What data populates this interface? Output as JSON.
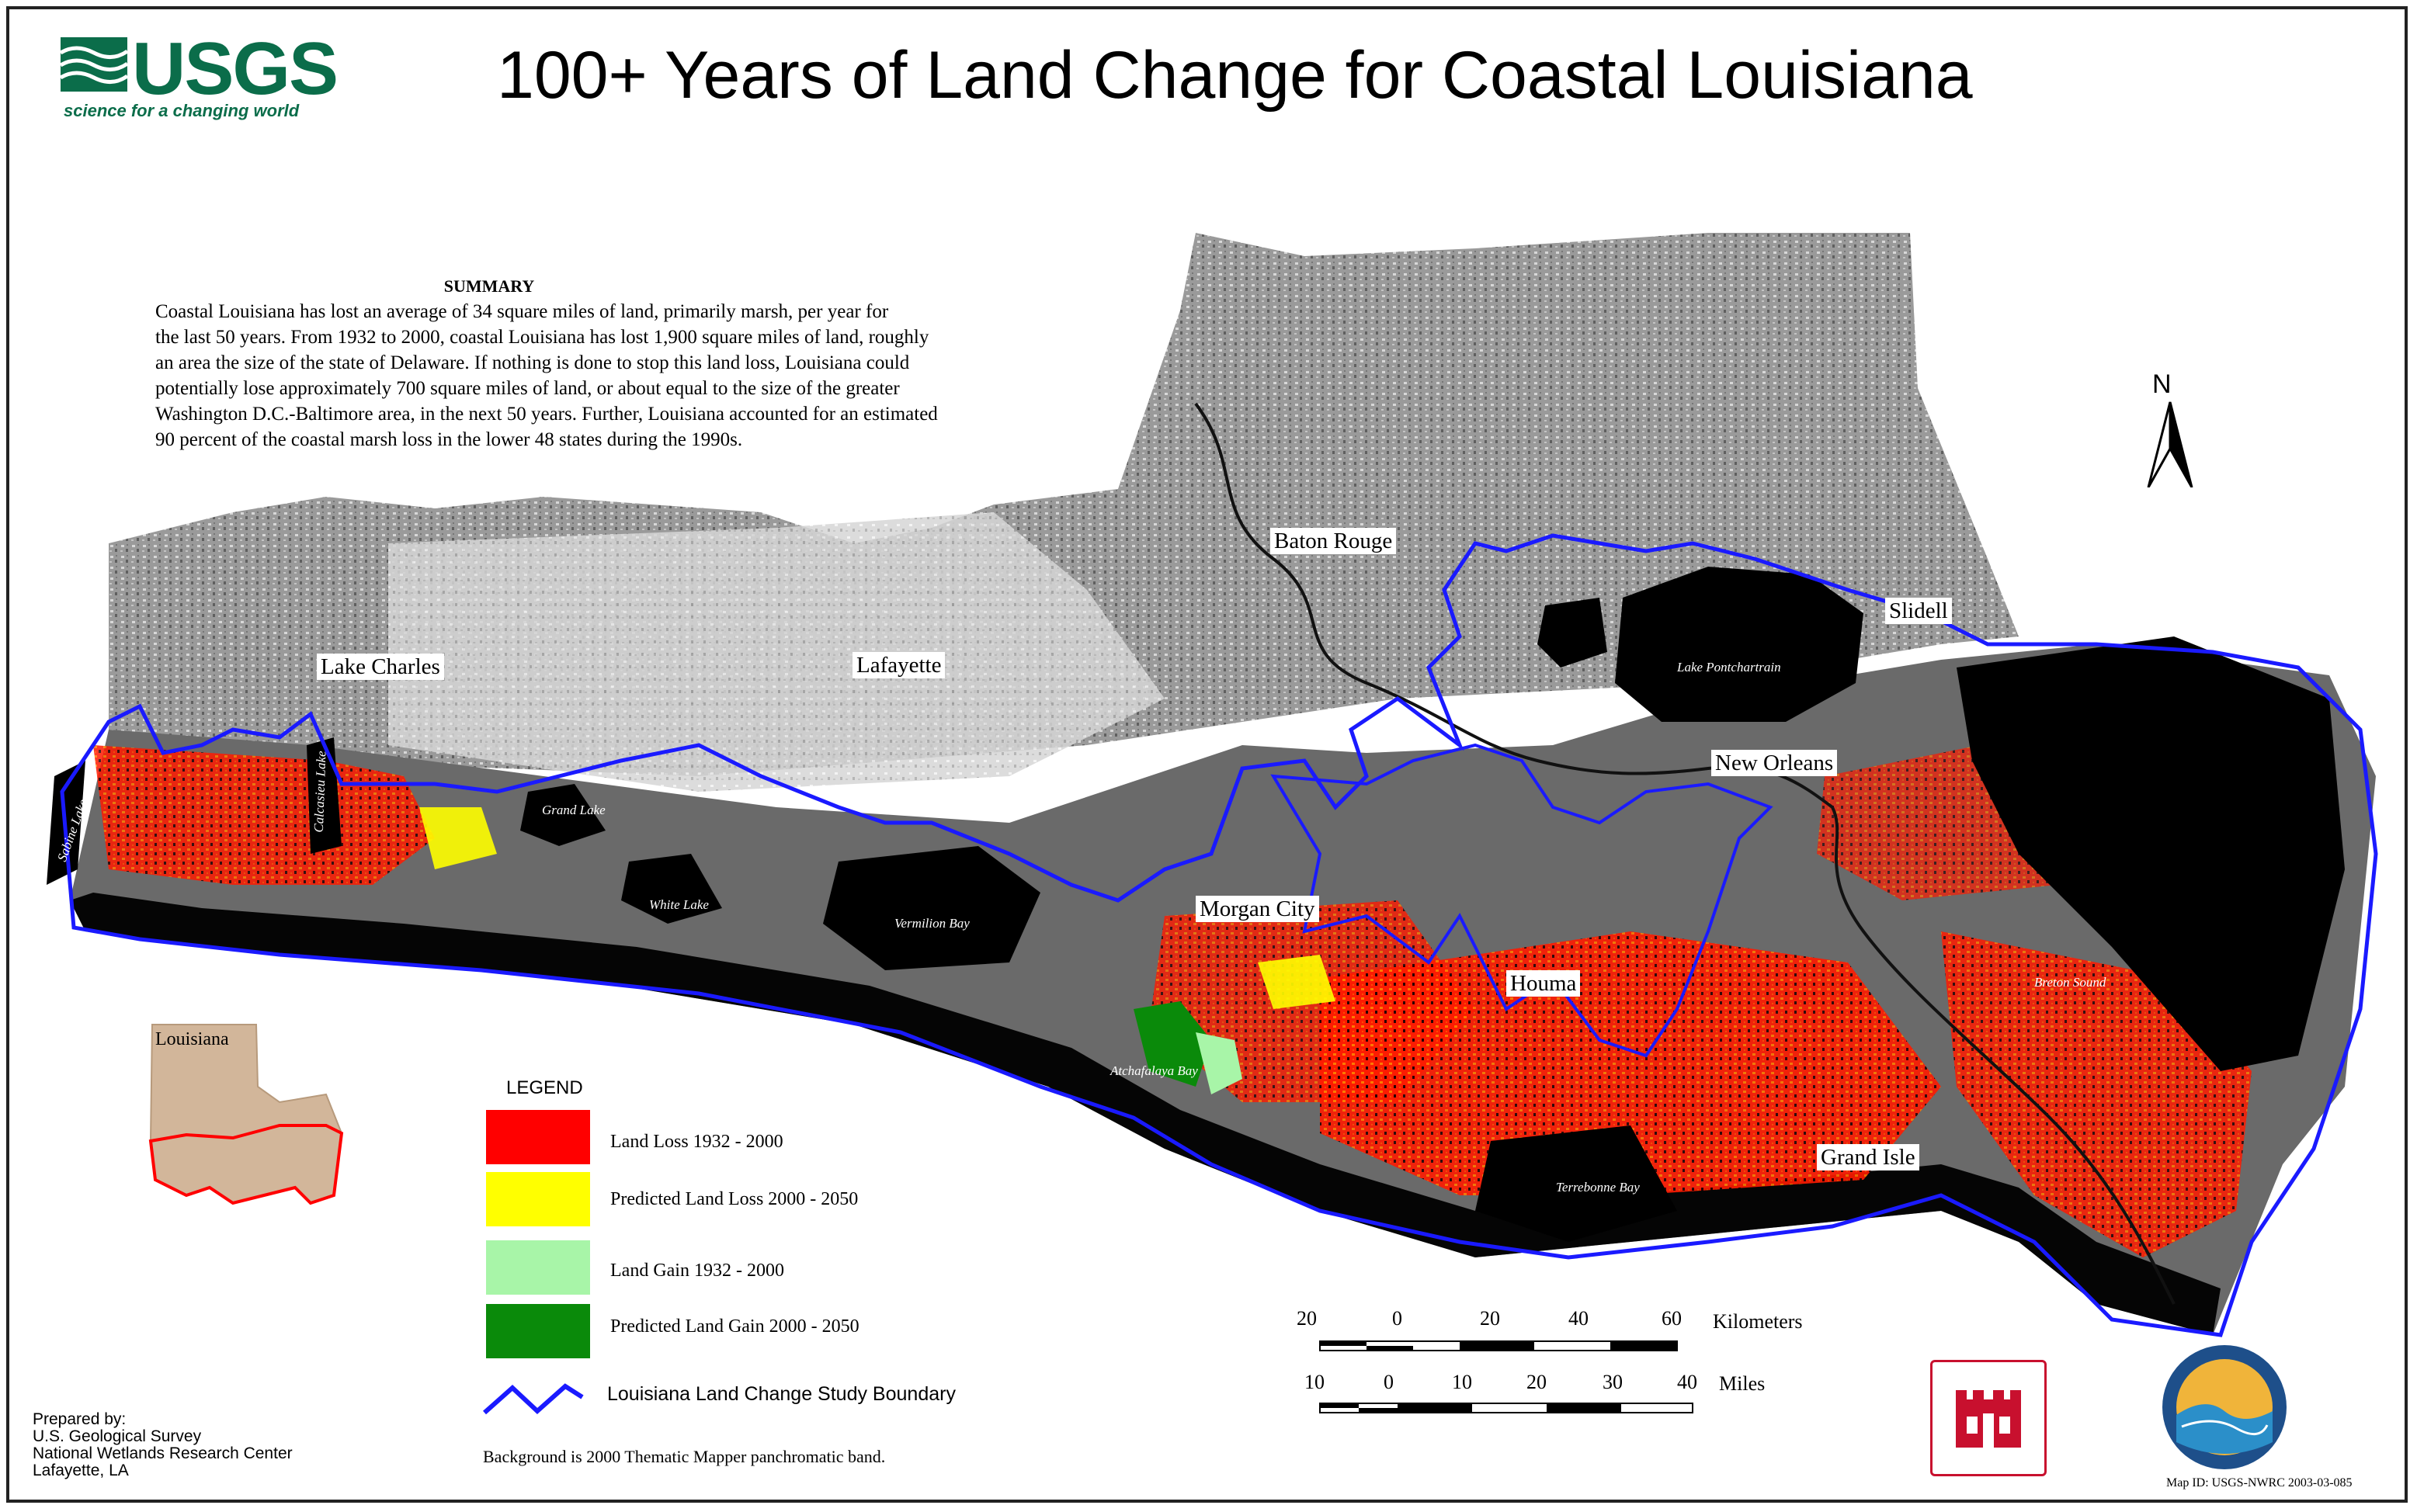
{
  "header": {
    "logo_text": "USGS",
    "logo_tagline": "science for a changing world",
    "title": "100+ Years of Land Change for Coastal Louisiana"
  },
  "summary": {
    "heading": "SUMMARY",
    "lines": [
      "Coastal Louisiana has lost an average of 34 square miles of land, primarily marsh,  per year for",
      "the last 50 years. From 1932 to 2000,  coastal Louisiana has lost 1,900 square miles of land, roughly",
      "an area the size of the state of Delaware.  If nothing is done to stop this land loss,  Louisiana could",
      "potentially lose approximately 700 square miles of land, or about equal to the size of the greater",
      "Washington D.C.-Baltimore area, in the next 50 years.  Further, Louisiana accounted for an estimated",
      "90 percent of the coastal marsh loss in the lower 48 states during the 1990s."
    ]
  },
  "places": {
    "baton_rouge": "Baton Rouge",
    "lake_charles": "Lake Charles",
    "lafayette": "Lafayette",
    "slidell": "Slidell",
    "new_orleans": "New Orleans",
    "morgan_city": "Morgan City",
    "houma": "Houma",
    "grand_isle": "Grand Isle"
  },
  "water_bodies": {
    "lake_pontchartrain": "Lake Pontchartrain",
    "sabine_lake": "Sabine Lake",
    "calcasieu_lake": "Calcasieu Lake",
    "grand_lake": "Grand Lake",
    "white_lake": "White Lake",
    "vermilion_bay": "Vermilion Bay",
    "atchafalaya_bay": "Atchafalaya Bay",
    "terrebonne_bay": "Terrebonne Bay",
    "breton_sound": "Breton Sound"
  },
  "inset": {
    "label": "Louisiana"
  },
  "legend": {
    "title": "LEGEND",
    "items": [
      {
        "label": "Land Loss 1932 - 2000",
        "color": "#ff0000"
      },
      {
        "label": "Predicted Land Loss 2000 - 2050",
        "color": "#ffff00"
      },
      {
        "label": "Land Gain 1932 - 2000",
        "color": "#a8f5a8"
      },
      {
        "label": "Predicted Land Gain 2000 - 2050",
        "color": "#0a8a0a"
      }
    ],
    "boundary_label": "Louisiana Land Change Study Boundary",
    "boundary_color": "#1a1aff",
    "background_note": "Background is 2000 Thematic Mapper  panchromatic band."
  },
  "scale": {
    "km_ticks": [
      "20",
      "0",
      "20",
      "40",
      "60"
    ],
    "km_unit": "Kilometers",
    "mile_ticks": [
      "10",
      "0",
      "10",
      "20",
      "30",
      "40"
    ],
    "mile_unit": "Miles"
  },
  "north_label": "N",
  "prepared_by": [
    "Prepared by:",
    "U.S. Geological Survey",
    "National Wetlands Research Center",
    "Lafayette, LA"
  ],
  "map_id": "Map ID: USGS-NWRC 2003-03-085"
}
